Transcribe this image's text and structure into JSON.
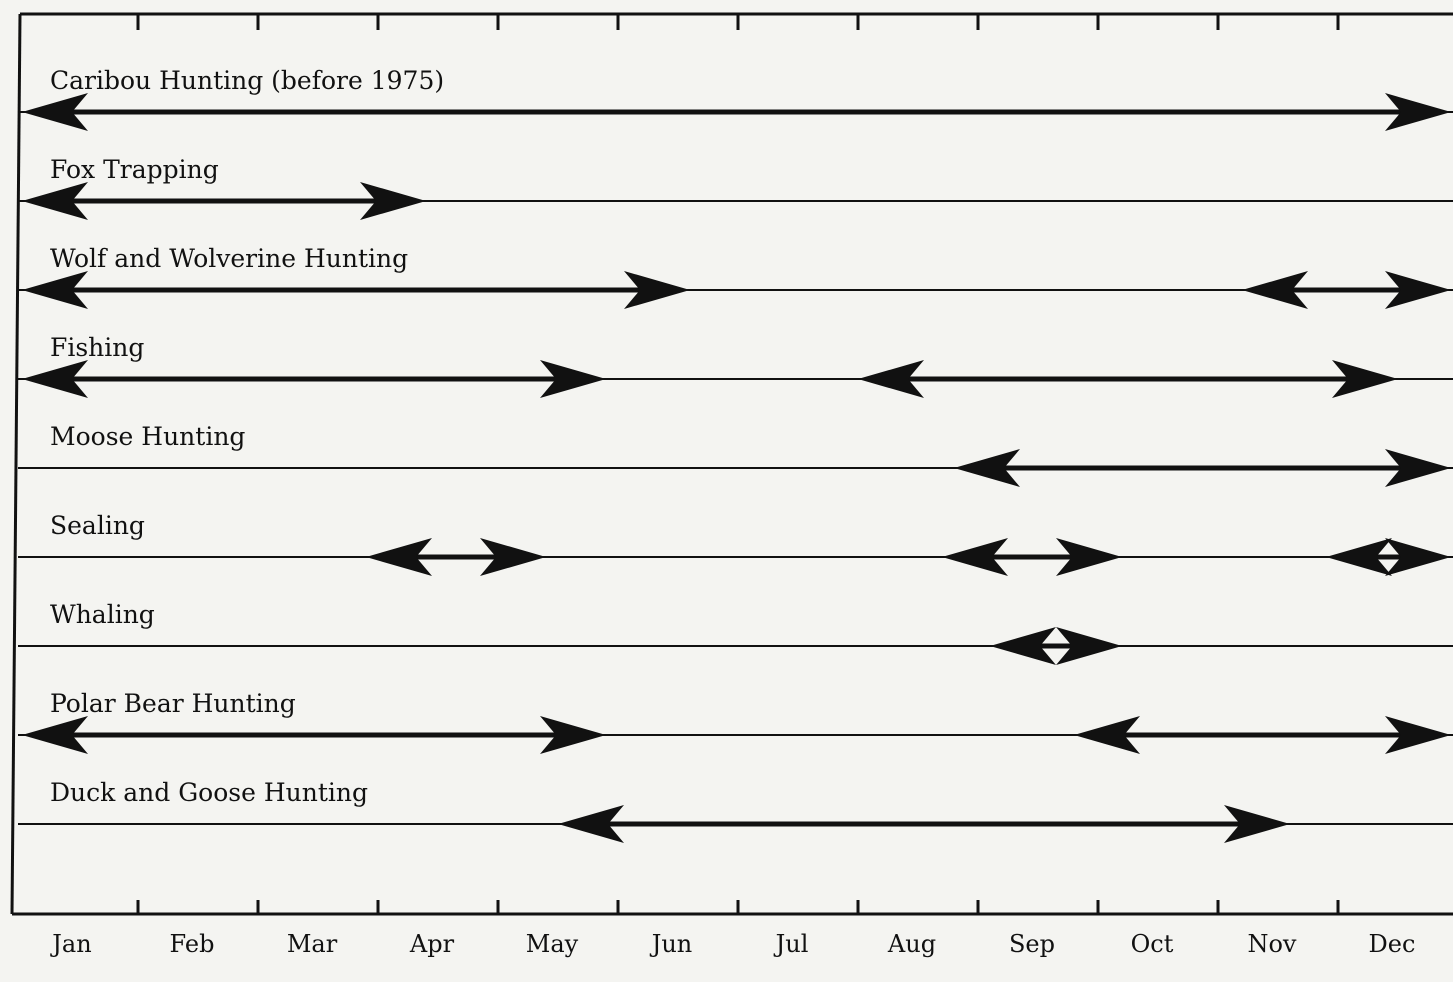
{
  "chart_data": {
    "type": "gantt",
    "title": "",
    "xlabel": "",
    "ylabel": "",
    "months": [
      "Jan",
      "Feb",
      "Mar",
      "Apr",
      "May",
      "Jun",
      "Jul",
      "Aug",
      "Sep",
      "Oct",
      "Nov",
      "Dec"
    ],
    "x_unit": "month (0 = start of Jan, 12 = end of Dec)",
    "xlim": [
      0,
      12
    ],
    "grid": false,
    "legend": "none",
    "activities": [
      {
        "name": "Caribou Hunting (before 1975)",
        "periods": [
          [
            0,
            12
          ]
        ]
      },
      {
        "name": "Fox Trapping",
        "periods": [
          [
            0,
            3.4
          ]
        ]
      },
      {
        "name": "Wolf and Wolverine Hunting",
        "periods": [
          [
            0,
            5.6
          ],
          [
            10.2,
            12
          ]
        ]
      },
      {
        "name": "Fishing",
        "periods": [
          [
            0,
            4.9
          ],
          [
            7.0,
            11.5
          ]
        ]
      },
      {
        "name": "Moose Hunting",
        "periods": [
          [
            7.8,
            12
          ]
        ]
      },
      {
        "name": "Sealing",
        "periods": [
          [
            2.9,
            4.4
          ],
          [
            7.7,
            9.2
          ],
          [
            10.9,
            12
          ]
        ]
      },
      {
        "name": "Whaling",
        "periods": [
          [
            8.1,
            9.2
          ]
        ]
      },
      {
        "name": "Polar Bear Hunting",
        "periods": [
          [
            0,
            4.9
          ],
          [
            8.8,
            12
          ]
        ]
      },
      {
        "name": "Duck and Goose Hunting",
        "periods": [
          [
            4.5,
            10.6
          ]
        ]
      }
    ],
    "colors": {
      "ink": "#111111",
      "paper": "#f4f4f1"
    }
  }
}
